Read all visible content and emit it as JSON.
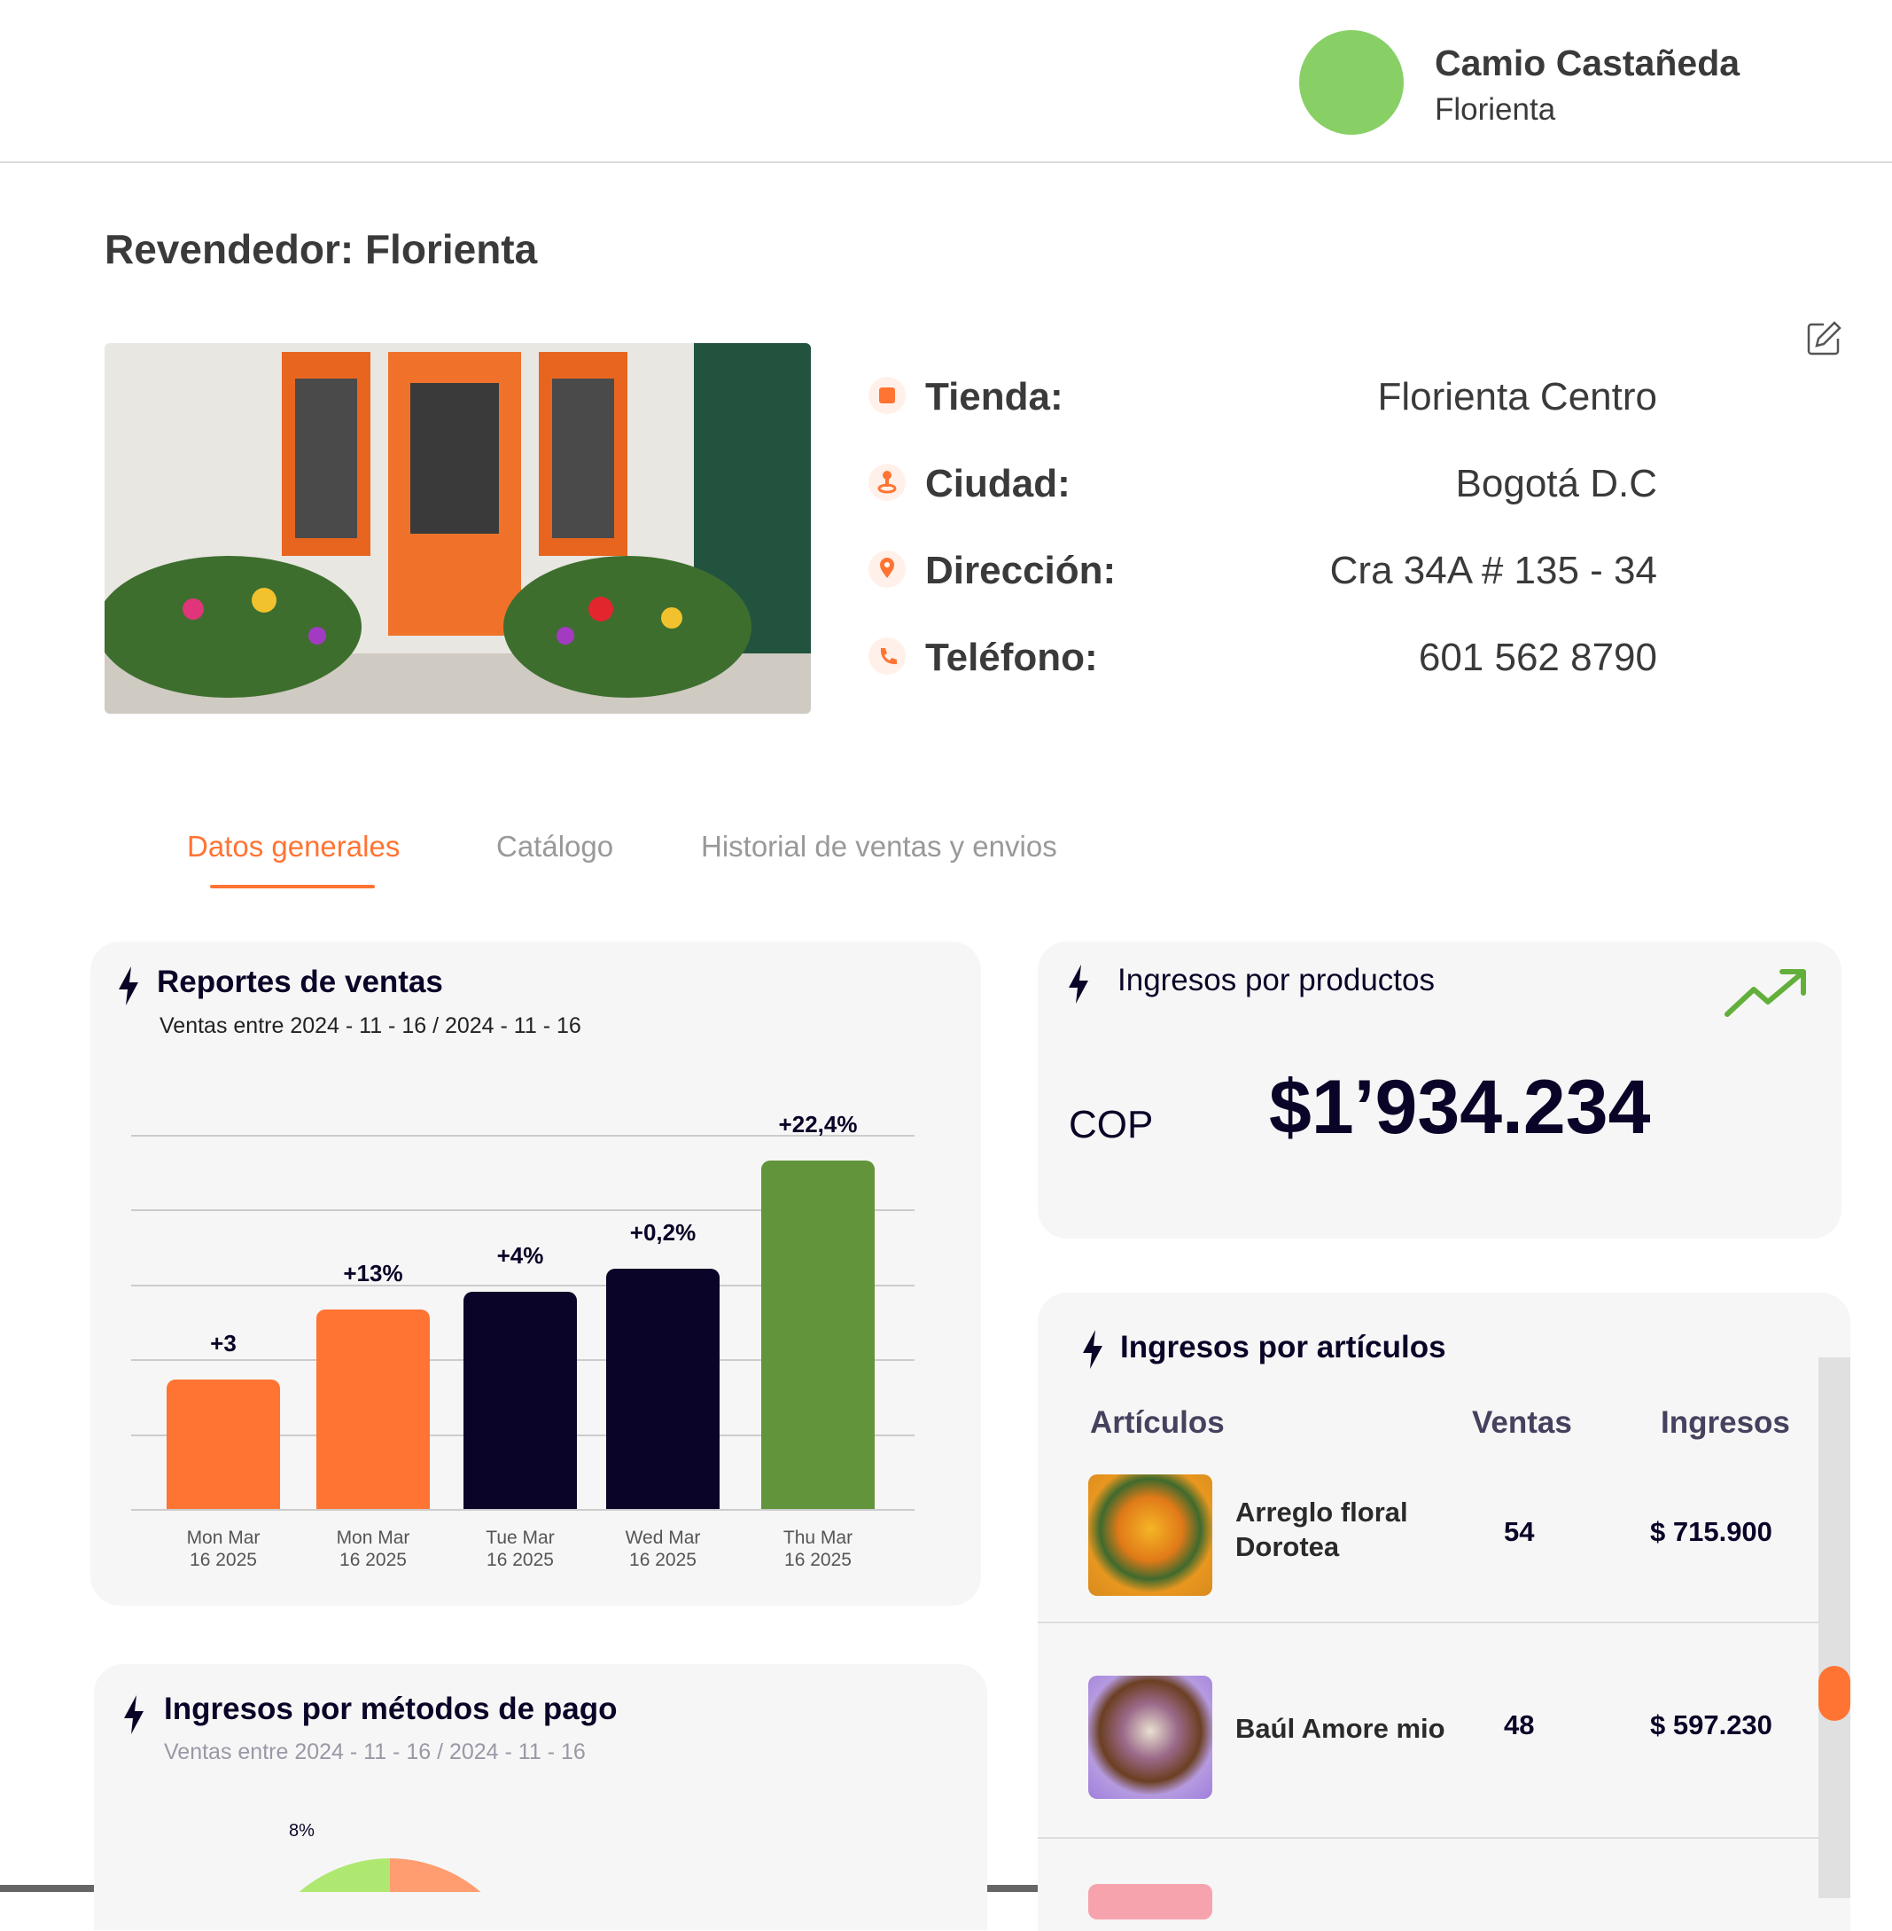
{
  "user": {
    "name": "Camio Castañeda",
    "store": "Florienta",
    "avatar_color": "#88d066"
  },
  "page": {
    "title": "Revendedor: Florienta"
  },
  "info": [
    {
      "icon": "store-icon",
      "label": "Tienda:",
      "value": "Florienta Centro"
    },
    {
      "icon": "city-pin-icon",
      "label": "Ciudad:",
      "value": "Bogotá D.C"
    },
    {
      "icon": "location-icon",
      "label": "Dirección:",
      "value": "Cra 34A # 135 - 34"
    },
    {
      "icon": "phone-icon",
      "label": "Teléfono:",
      "value": "601 562 8790"
    }
  ],
  "tabs": [
    {
      "label": "Datos generales",
      "active": true
    },
    {
      "label": "Catálogo"
    },
    {
      "label": "Historial de ventas y envios"
    }
  ],
  "sales_report": {
    "title": "Reportes de ventas",
    "subtitle": "Ventas entre 2024 - 11 - 16 / 2024 - 11 - 16"
  },
  "chart_data": {
    "type": "bar",
    "categories": [
      "Mon Mar 16 2025",
      "Mon Mar 16 2025",
      "Tue Mar 16 2025",
      "Wed Mar 16 2025",
      "Thu Mar 16 2025"
    ],
    "category_lines": [
      [
        "Mon Mar",
        "16 2025"
      ],
      [
        "Mon Mar",
        "16 2025"
      ],
      [
        "Tue Mar",
        "16 2025"
      ],
      [
        "Wed Mar",
        "16 2025"
      ],
      [
        "Thu Mar",
        "16 2025"
      ]
    ],
    "values": [
      34.5,
      53.2,
      58.1,
      64.2,
      93.2
    ],
    "data_labels": [
      "+3",
      "+13%",
      "+4%",
      "+0,2%",
      "+22,4%"
    ],
    "colors": [
      "#ff7433",
      "#ff7433",
      "#0a0528",
      "#0a0528",
      "#62943b"
    ],
    "ylim": [
      0,
      100
    ],
    "grid": true
  },
  "product_income": {
    "title": "Ingresos por productos",
    "currency": "COP",
    "amount": "$1’934.234",
    "trend_color": "#62b03b"
  },
  "article_income": {
    "title": "Ingresos por artículos",
    "headers": [
      "Artículos",
      "Ventas",
      "Ingresos"
    ],
    "rows": [
      {
        "name": "Arreglo floral Dorotea",
        "sales": "54",
        "income": "$ 715.900"
      },
      {
        "name": "Baúl Amore mio",
        "sales": "48",
        "income": "$ 597.230"
      }
    ]
  },
  "payment_methods": {
    "title": "Ingresos por métodos de pago",
    "subtitle": "Ventas entre 2024 - 11 - 16 / 2024 - 11 - 16",
    "slice_label": "8%"
  },
  "colors": {
    "accent": "#ff7433",
    "dark": "#0a0528",
    "green": "#62943b"
  }
}
